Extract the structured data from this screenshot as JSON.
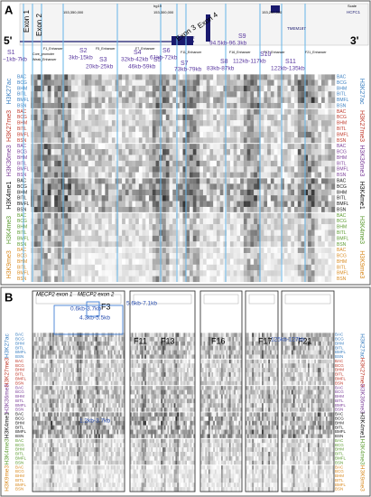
{
  "panel_a": {
    "label": "A",
    "assembly": "hg19",
    "scale": "Scale",
    "coordinates": [
      "153,350,000",
      "153,300,000",
      "153,250,000"
    ],
    "genes": [
      "MECP2",
      "TMEM187",
      "HCFC1"
    ],
    "exons": [
      "Exon 1",
      "Exon 2",
      "Exon 3",
      "Exon 4"
    ],
    "ends": [
      "5'",
      "3'"
    ],
    "elements": [
      "F1_Enhancer",
      "Core_promoter",
      "Weak_Enhancer",
      "F5_Enhancer",
      "F7_Enhancer",
      "F11_Enhancer",
      "F16_Enhancer",
      "F17_Enhancer",
      "F21_Enhancer"
    ],
    "segments": [
      {
        "name": "S1",
        "range": "−1kb-7kb"
      },
      {
        "name": "S2",
        "range": "3kb-15kb"
      },
      {
        "name": "S3",
        "range": "20kb-25kb"
      },
      {
        "name": "S4",
        "range": "32kb-42kb"
      },
      {
        "name": "S5",
        "range": "46kb-59kb"
      },
      {
        "name": "S6",
        "range": "61kb-72kb"
      },
      {
        "name": "S7",
        "range": "73kb-79kb"
      },
      {
        "name": "S8",
        "range": "83kb-87kb"
      },
      {
        "name": "S9",
        "range": "94.5kb-96.3kb"
      },
      {
        "name": "S10",
        "range": "112kb-117kb"
      },
      {
        "name": "S11",
        "range": "122kb-135kb"
      }
    ]
  },
  "tracks": {
    "groups": [
      "H3K27ac",
      "H3K27me3",
      "H3K36me3",
      "H3K4me1",
      "H3K4me3",
      "H3K9me3"
    ],
    "samples": [
      "BAC",
      "BCG",
      "BHM",
      "BITL",
      "BMFL",
      "BSN"
    ]
  },
  "panel_b": {
    "label": "B",
    "exons": [
      "MECP2 exon 1",
      "MECP2 exon 2"
    ],
    "fragments": [
      "F3",
      "F11",
      "F13",
      "F16",
      "F17",
      "F21"
    ],
    "ranges": [
      "0.6kb-3.7kb",
      "5.6kb-7.1kb",
      "4.3kb-5.5kb",
      "125kb-127kb",
      "1.2kb-3.7kb"
    ]
  }
}
